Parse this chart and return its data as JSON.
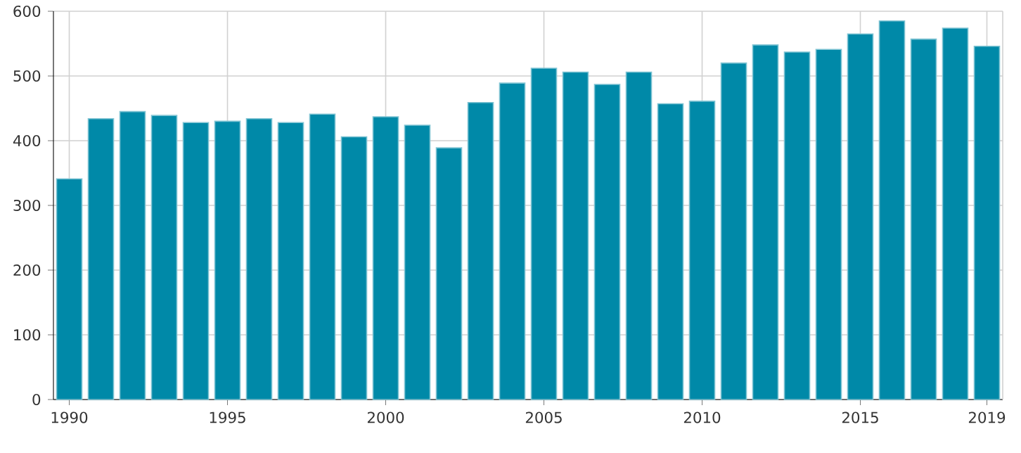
{
  "chart_data": {
    "type": "bar",
    "x": [
      1990,
      1991,
      1992,
      1993,
      1994,
      1995,
      1996,
      1997,
      1998,
      1999,
      2000,
      2001,
      2002,
      2003,
      2004,
      2005,
      2006,
      2007,
      2008,
      2009,
      2010,
      2011,
      2012,
      2013,
      2014,
      2015,
      2016,
      2017,
      2018,
      2019
    ],
    "values": [
      341,
      434,
      445,
      439,
      428,
      430,
      434,
      428,
      441,
      406,
      437,
      424,
      389,
      459,
      489,
      512,
      506,
      487,
      506,
      457,
      461,
      520,
      548,
      537,
      541,
      565,
      585,
      557,
      574,
      546
    ],
    "color": "#0089a8",
    "xlim": [
      1989.5,
      2019.5
    ],
    "xticks": [
      1990,
      1995,
      2000,
      2005,
      2010,
      2015,
      2019
    ],
    "ylim": [
      0,
      600
    ],
    "yticks": [
      0,
      100,
      200,
      300,
      400,
      500,
      600
    ],
    "grid": true
  }
}
